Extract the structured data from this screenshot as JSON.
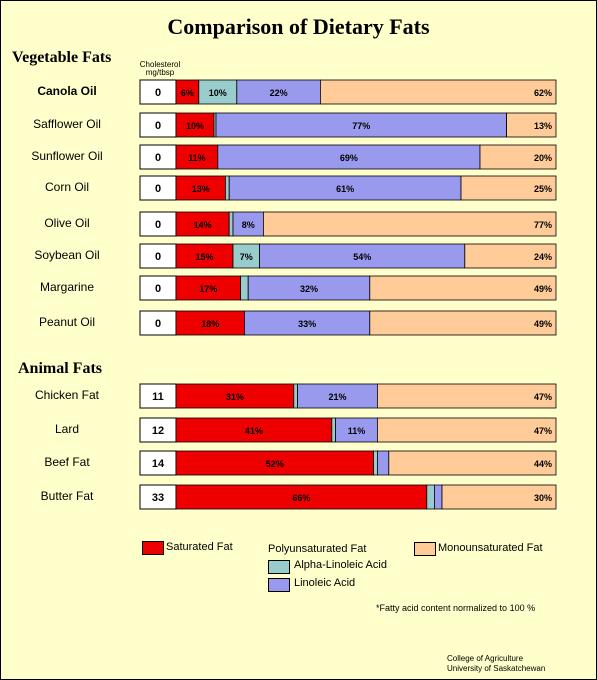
{
  "chart_data": {
    "type": "bar",
    "title": "Comparison of Dietary Fats",
    "cholesterol_header": "Cholesterol mg/tbsp",
    "sections": [
      {
        "name": "Vegetable Fats",
        "rows": [
          {
            "name": "Canola Oil",
            "bold": true,
            "cholesterol": "0",
            "segments": [
              [
                "sat",
                6,
                "6%"
              ],
              [
                "ala",
                10,
                "10%"
              ],
              [
                "la",
                22,
                "22%"
              ],
              [
                "mono",
                62,
                "62%"
              ]
            ]
          },
          {
            "name": "Safflower Oil",
            "cholesterol": "0",
            "segments": [
              [
                "sat",
                10,
                "10%"
              ],
              [
                "ala",
                0,
                "trace"
              ],
              [
                "la",
                77,
                "77%"
              ],
              [
                "mono",
                13,
                "13%"
              ]
            ]
          },
          {
            "name": "Sunflower Oil",
            "cholesterol": "0",
            "segments": [
              [
                "sat",
                11,
                "11%"
              ],
              [
                "la",
                69,
                "69%"
              ],
              [
                "mono",
                20,
                "20%"
              ]
            ]
          },
          {
            "name": "Corn Oil",
            "cholesterol": "0",
            "segments": [
              [
                "sat",
                13,
                "13%"
              ],
              [
                "ala",
                1,
                "1%"
              ],
              [
                "la",
                61,
                "61%"
              ],
              [
                "mono",
                25,
                "25%"
              ]
            ]
          },
          {
            "name": "Olive Oil",
            "cholesterol": "0",
            "segments": [
              [
                "sat",
                14,
                "14%"
              ],
              [
                "ala",
                1,
                "1%"
              ],
              [
                "la",
                8,
                "8%"
              ],
              [
                "mono",
                77,
                "77%"
              ]
            ]
          },
          {
            "name": "Soybean Oil",
            "cholesterol": "0",
            "segments": [
              [
                "sat",
                15,
                "15%"
              ],
              [
                "ala",
                7,
                "7%"
              ],
              [
                "la",
                54,
                "54%"
              ],
              [
                "mono",
                24,
                "24%"
              ]
            ]
          },
          {
            "name": "Margarine",
            "cholesterol": "0",
            "segments": [
              [
                "sat",
                17,
                "17%"
              ],
              [
                "ala",
                2,
                "2%"
              ],
              [
                "la",
                32,
                "32%"
              ],
              [
                "mono",
                49,
                "49%"
              ]
            ]
          },
          {
            "name": "Peanut Oil",
            "cholesterol": "0",
            "segments": [
              [
                "sat",
                18,
                "18%"
              ],
              [
                "la",
                33,
                "33%"
              ],
              [
                "mono",
                49,
                "49%"
              ]
            ]
          }
        ]
      },
      {
        "name": "Animal Fats",
        "rows": [
          {
            "name": "Chicken Fat",
            "cholesterol": "11",
            "segments": [
              [
                "sat",
                31,
                "31%"
              ],
              [
                "ala",
                1,
                "1%"
              ],
              [
                "la",
                21,
                "21%"
              ],
              [
                "mono",
                47,
                "47%"
              ]
            ]
          },
          {
            "name": "Lard",
            "cholesterol": "12",
            "segments": [
              [
                "sat",
                41,
                "41%"
              ],
              [
                "ala",
                1,
                "1%"
              ],
              [
                "la",
                11,
                "11%"
              ],
              [
                "mono",
                47,
                "47%"
              ]
            ]
          },
          {
            "name": "Beef Fat",
            "cholesterol": "14",
            "segments": [
              [
                "sat",
                52,
                "52%"
              ],
              [
                "ala",
                1,
                "1%"
              ],
              [
                "la",
                3,
                "3%"
              ],
              [
                "mono",
                44,
                "44%"
              ]
            ]
          },
          {
            "name": "Butter Fat",
            "cholesterol": "33",
            "segments": [
              [
                "sat",
                66,
                "66%"
              ],
              [
                "ala",
                2,
                "2%"
              ],
              [
                "la",
                2,
                "2%"
              ],
              [
                "mono",
                30,
                "30%"
              ]
            ]
          }
        ]
      }
    ],
    "colors": {
      "sat": "#ee0000",
      "ala": "#99cccc",
      "la": "#9999ee",
      "mono": "#ffcc99"
    },
    "legend": {
      "saturated": "Saturated Fat",
      "poly": "Polyunsaturated Fat",
      "ala": "Alpha-Linoleic Acid",
      "la": "Linoleic Acid",
      "mono": "Monounsaturated Fat"
    },
    "footnote": "*Fatty acid content normalized to 100 %",
    "credit_line1": "College of Agriculture",
    "credit_line2": "University of Saskatchewan"
  }
}
